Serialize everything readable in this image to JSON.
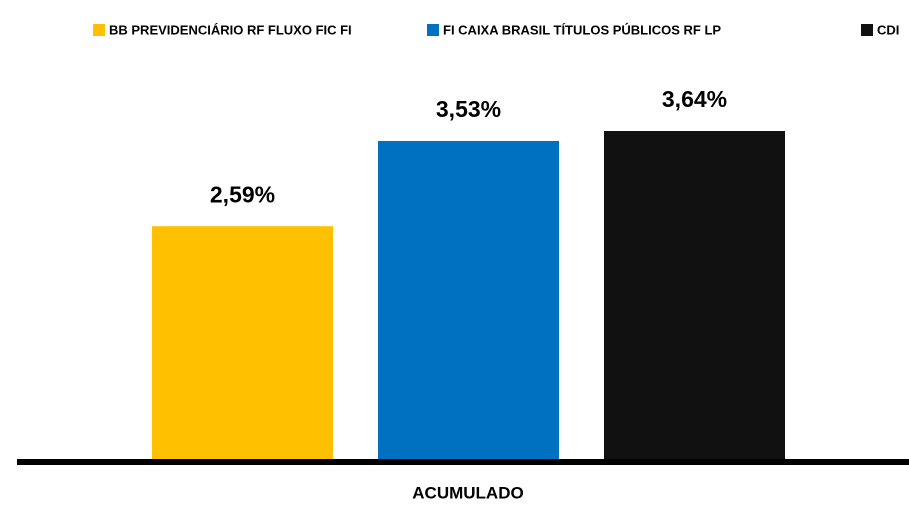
{
  "chart_data": {
    "type": "bar",
    "categories": [
      "ACUMULADO"
    ],
    "series": [
      {
        "name": "BB PREVIDENCIÁRIO RF FLUXO FIC FI",
        "color": "#FFC000",
        "values": [
          2.59
        ],
        "value_labels": [
          "2,59%"
        ]
      },
      {
        "name": "FI CAIXA BRASIL TÍTULOS PÚBLICOS RF LP",
        "color": "#0070C0",
        "values": [
          3.53
        ],
        "value_labels": [
          "3,53%"
        ]
      },
      {
        "name": "CDI",
        "color": "#111111",
        "values": [
          3.64
        ],
        "value_labels": [
          "3,64%"
        ]
      }
    ],
    "legend": "top"
  }
}
